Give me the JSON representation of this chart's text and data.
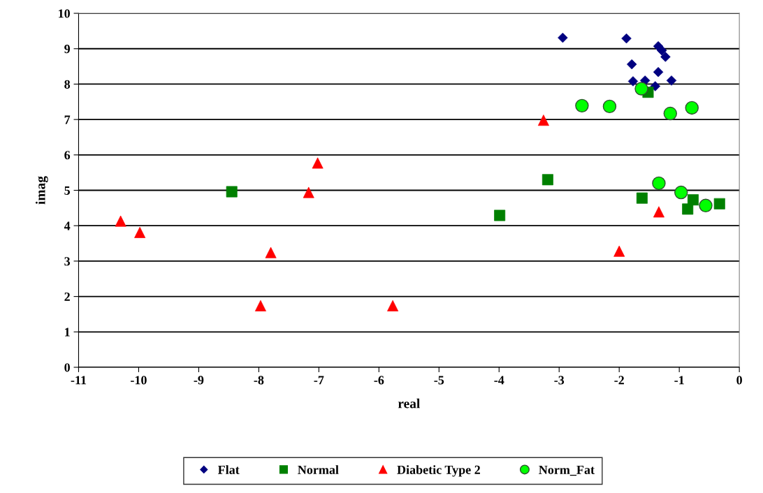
{
  "chart_data": {
    "type": "scatter",
    "xlabel": "real",
    "ylabel": "imag",
    "xlim": [
      -11,
      0
    ],
    "xticks": [
      -11,
      -10,
      -9,
      -8,
      -7,
      -6,
      -5,
      -4,
      -3,
      -2,
      -1,
      0
    ],
    "ylim": [
      0,
      10
    ],
    "yticks": [
      0,
      1,
      2,
      3,
      4,
      5,
      6,
      7,
      8,
      9,
      10
    ],
    "grid": "y",
    "legend": "bottom",
    "series": [
      {
        "name": "Flat",
        "color": "#000080",
        "marker": "diamond",
        "x": [
          -2.94,
          -1.88,
          -1.35,
          -1.29,
          -1.23,
          -1.79,
          -1.35,
          -1.77,
          -1.57,
          -1.4,
          -1.13
        ],
        "values": [
          9.31,
          9.29,
          9.07,
          8.95,
          8.77,
          8.56,
          8.34,
          8.08,
          8.1,
          7.94,
          8.1
        ]
      },
      {
        "name": "Normal",
        "color": "#008000",
        "marker": "square",
        "x": [
          -8.45,
          -3.99,
          -3.19,
          -1.52,
          -1.62,
          -0.77,
          -0.86,
          -0.33
        ],
        "values": [
          4.96,
          4.29,
          5.3,
          7.77,
          4.78,
          4.73,
          4.47,
          4.62
        ]
      },
      {
        "name": "Diabetic Type 2",
        "color": "#ff0000",
        "marker": "triangle",
        "x": [
          -10.3,
          -9.98,
          -7.97,
          -7.8,
          -7.17,
          -7.02,
          -5.77,
          -3.26,
          -2.0,
          -1.34
        ],
        "values": [
          4.13,
          3.81,
          1.74,
          3.24,
          4.94,
          5.77,
          1.74,
          6.98,
          3.28,
          4.39
        ]
      },
      {
        "name": "Norm_Fat",
        "color": "#00ff00",
        "marker": "circle",
        "x": [
          -2.62,
          -2.16,
          -1.63,
          -1.15,
          -0.79,
          -1.34,
          -0.97,
          -0.56
        ],
        "values": [
          7.39,
          7.37,
          7.87,
          7.17,
          7.33,
          5.2,
          4.94,
          4.57
        ]
      }
    ]
  }
}
